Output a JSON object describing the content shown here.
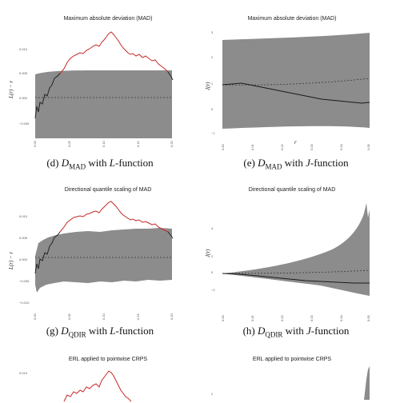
{
  "panels": [
    {
      "id": "d",
      "title": "Maximum absolute deviation (MAD)",
      "caption_prefix": "(d) ",
      "caption_d": "D",
      "caption_sub": "MAD",
      "caption_mid": " with ",
      "caption_fn": "L",
      "caption_suffix": "-function",
      "ylabel": "L(r) − r",
      "xlabel": "",
      "yticks": [
        "0.010",
        "0.005",
        "0.000",
        "−0.005"
      ],
      "xticks": [
        "0.00",
        "0.05",
        "0.10",
        "0.15",
        "0.20"
      ]
    },
    {
      "id": "e",
      "title": "Maximum absolute deviation (MAD)",
      "caption_prefix": "(e) ",
      "caption_d": "D",
      "caption_sub": "MAD",
      "caption_mid": " with ",
      "caption_fn": "J",
      "caption_suffix": "-function",
      "ylabel": "J(r)",
      "xlabel": "r",
      "yticks": [
        "3",
        "2",
        "1",
        "0",
        "−1"
      ],
      "xticks": [
        "0.00",
        "0.01",
        "0.02",
        "0.03",
        "0.04",
        "0.05"
      ]
    },
    {
      "id": "g",
      "title": "Directional quantile scaling of MAD",
      "caption_prefix": "(g) ",
      "caption_d": "D",
      "caption_sub": "QDIR",
      "caption_mid": " with ",
      "caption_fn": "L",
      "caption_suffix": "-function",
      "ylabel": "L(r) − r",
      "xlabel": "",
      "yticks": [
        "0.010",
        "0.005",
        "0.000",
        "−0.005",
        "−0.010"
      ],
      "xticks": [
        "0.00",
        "0.05",
        "0.10",
        "0.15",
        "0.20"
      ]
    },
    {
      "id": "h",
      "title": "Directional quantile scaling of MAD",
      "caption_prefix": "(h) ",
      "caption_d": "D",
      "caption_sub": "QDIR",
      "caption_mid": " with ",
      "caption_fn": "J",
      "caption_suffix": "-function",
      "ylabel": "J(r)",
      "xlabel": "",
      "yticks": [
        "4",
        "2",
        "0",
        "−2"
      ],
      "xticks": [
        "0.00",
        "0.01",
        "0.02",
        "0.03",
        "0.04",
        "0.05"
      ]
    },
    {
      "id": "i",
      "title": "ERL applied to pointwise CRPS",
      "ylabel": "",
      "yticks": [
        "0.010"
      ],
      "xticks": []
    },
    {
      "id": "j",
      "title": "ERL applied to pointwise CRPS",
      "ylabel": "",
      "yticks": [
        "2"
      ],
      "xticks": []
    }
  ],
  "colors": {
    "band": "#8c8c8c",
    "observed": "#1a1a1a",
    "exceed": "#c62828",
    "median": "#3a3a3a"
  }
}
